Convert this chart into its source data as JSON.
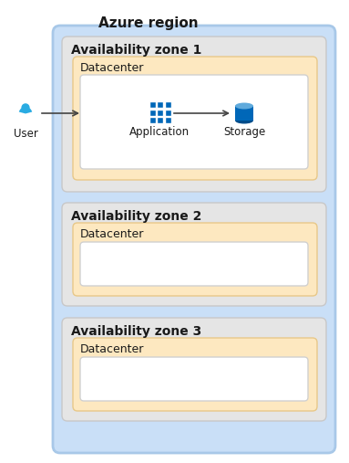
{
  "title": "Azure region",
  "azure_region_bg": "#c9dff7",
  "azure_region_border": "#a8c8e8",
  "zone_bg": "#e5e5e5",
  "zone_border": "#c8c8c8",
  "datacenter_bg": "#fde8c0",
  "datacenter_border": "#e8c888",
  "inner_box_bg": "#ffffff",
  "inner_box_border": "#d0d0d0",
  "zones": [
    "Availability zone 1",
    "Availability zone 2",
    "Availability zone 3"
  ],
  "datacenter_label": "Datacenter",
  "user_label": "User",
  "app_label": "Application",
  "storage_label": "Storage",
  "arrow_color": "#444444",
  "text_color": "#1a1a1a",
  "title_color": "#1a1a1a",
  "user_color": "#29abe2",
  "app_color_light": "#50a0e0",
  "app_color_dark": "#0067b8",
  "storage_body": "#0067b8",
  "storage_top": "#60aadc",
  "storage_bottom": "#004c8a",
  "fig_w": 3.83,
  "fig_h": 5.07,
  "dpi": 100
}
